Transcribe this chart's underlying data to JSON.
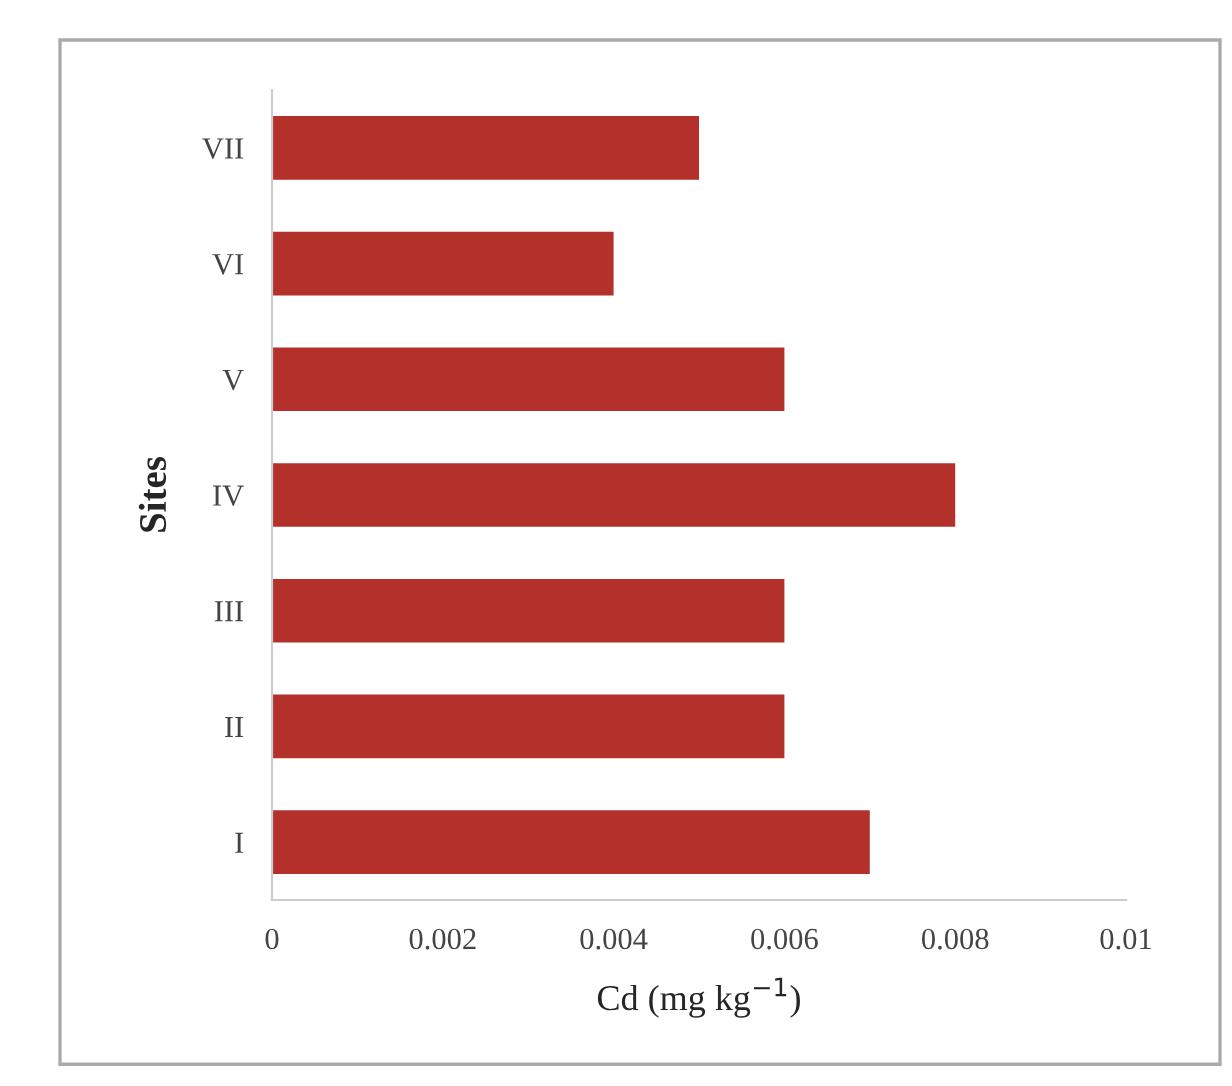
{
  "chart_data": {
    "type": "bar",
    "orientation": "horizontal",
    "xlabel": "Cd (mg kg$^{−1}$)",
    "ylabel": "Sites",
    "categories": [
      "VII",
      "VI",
      "V",
      "IV",
      "III",
      "II",
      "I"
    ],
    "values": [
      0.005,
      0.004,
      0.006,
      0.008,
      0.006,
      0.006,
      0.007
    ],
    "color": "#b3312a",
    "xlim": [
      0,
      0.01
    ],
    "xticks": [
      {
        "value": 0,
        "label": "0"
      },
      0.002,
      0.004,
      0.006,
      0.008,
      0.01
    ],
    "grid": false
  }
}
